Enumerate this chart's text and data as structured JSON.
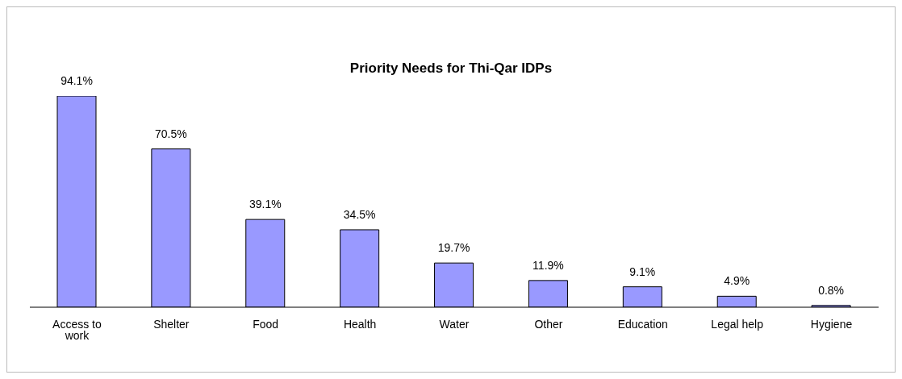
{
  "chart_data": {
    "type": "bar",
    "title": "Priority Needs for Thi-Qar IDPs",
    "categories": [
      "Access to work",
      "Shelter",
      "Food",
      "Health",
      "Water",
      "Other",
      "Education",
      "Legal help",
      "Hygiene"
    ],
    "values": [
      94.1,
      70.5,
      39.1,
      34.5,
      19.7,
      11.9,
      9.1,
      4.9,
      0.8
    ],
    "value_labels": [
      "94.1%",
      "70.5%",
      "39.1%",
      "34.5%",
      "19.7%",
      "11.9%",
      "9.1%",
      "4.9%",
      "0.8%"
    ],
    "color": "#9999ff",
    "grid": false,
    "legend": false
  }
}
